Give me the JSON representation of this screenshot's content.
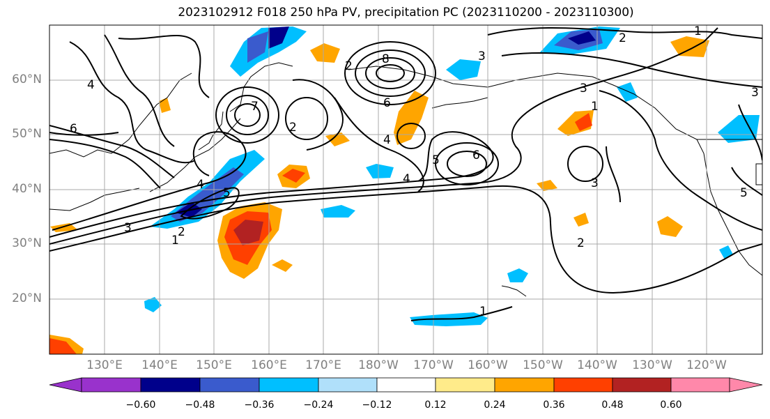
{
  "title": "2023102912 F018 250 hPa PV, precipitation PC (2023110200 - 2023110300)",
  "lat_labels": [
    "60°N",
    "50°N",
    "40°N",
    "30°N",
    "20°N"
  ],
  "lon_labels": [
    "130°E",
    "140°E",
    "150°E",
    "160°E",
    "170°E",
    "180°W",
    "170°W",
    "160°W",
    "150°W",
    "140°W",
    "130°W",
    "120°W"
  ],
  "contour_labels": [
    "1",
    "2",
    "3",
    "4",
    "5",
    "6",
    "7",
    "8"
  ],
  "colorbar": {
    "tick_labels": [
      "−0.60",
      "−0.48",
      "−0.36",
      "−0.24",
      "−0.12",
      "0.12",
      "0.24",
      "0.36",
      "0.48",
      "0.60"
    ],
    "colors": [
      "#9932cc",
      "#00008b",
      "#3a5bcd",
      "#00bfff",
      "#b0e0fa",
      "#ffffff",
      "#ffeb8a",
      "#ffa500",
      "#ff4000",
      "#b22222",
      "#ff88aa"
    ]
  },
  "colors": {
    "contour": "#000000",
    "coastline": "#000000",
    "grid": "#a9a9a9"
  }
}
